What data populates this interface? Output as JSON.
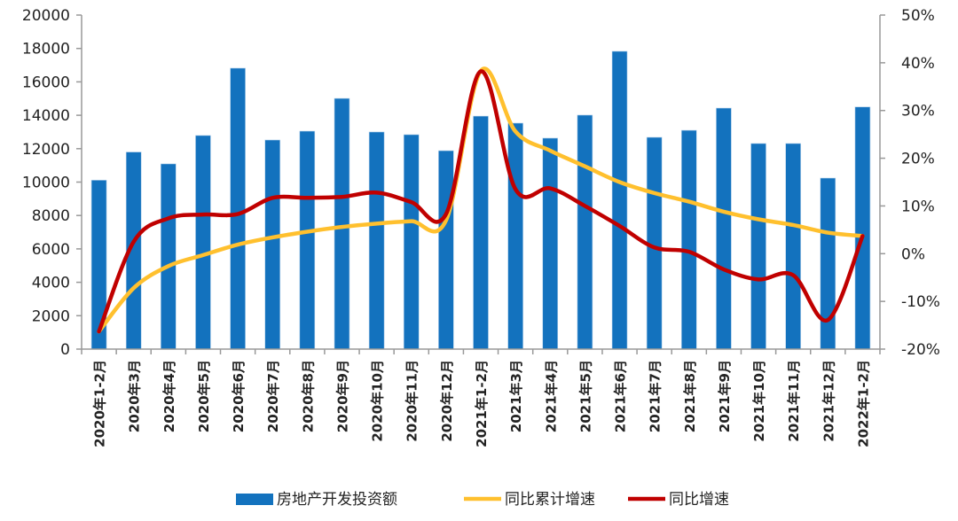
{
  "chart_data": {
    "type": "bar+line",
    "categories": [
      "2020年1-2月",
      "2020年3月",
      "2020年4月",
      "2020年5月",
      "2020年6月",
      "2020年7月",
      "2020年8月",
      "2020年9月",
      "2020年10月",
      "2020年11月",
      "2020年12月",
      "2021年1-2月",
      "2021年3月",
      "2021年4月",
      "2021年5月",
      "2021年6月",
      "2021年7月",
      "2021年8月",
      "2021年9月",
      "2021年10月",
      "2021年11月",
      "2021年12月",
      "2022年1-2月"
    ],
    "series": [
      {
        "name": "房地产开发投资额",
        "type": "bar",
        "axis": "left",
        "color": "#1372BE",
        "values": [
          10115,
          11800,
          11090,
          12790,
          16820,
          12520,
          13050,
          15010,
          13000,
          12840,
          11880,
          13950,
          13530,
          12630,
          14010,
          17830,
          12680,
          13100,
          14430,
          12310,
          12310,
          10240,
          14500
        ]
      },
      {
        "name": "同比累计增速",
        "type": "line",
        "axis": "right",
        "color": "#FFC02E",
        "values": [
          -16.3,
          -7.2,
          -2.6,
          -0.3,
          1.9,
          3.4,
          4.6,
          5.6,
          6.3,
          6.8,
          7.0,
          38.3,
          25.6,
          21.6,
          18.3,
          15.0,
          12.7,
          10.9,
          8.8,
          7.2,
          6.0,
          4.4,
          3.7
        ]
      },
      {
        "name": "同比增速",
        "type": "line",
        "axis": "right",
        "color": "#C00000",
        "values": [
          -16.3,
          2.5,
          7.4,
          8.2,
          8.3,
          11.7,
          11.7,
          11.9,
          12.8,
          10.8,
          8.3,
          38.2,
          13.5,
          13.7,
          10.0,
          5.8,
          1.3,
          0.4,
          -3.3,
          -5.4,
          -4.5,
          -13.9,
          3.7
        ]
      }
    ],
    "left_axis": {
      "ylim": [
        0,
        20000
      ],
      "ticks": [
        "0",
        "2000",
        "4000",
        "6000",
        "8000",
        "10000",
        "12000",
        "14000",
        "16000",
        "18000",
        "20000"
      ]
    },
    "right_axis": {
      "ylim": [
        -20,
        50
      ],
      "ticks": [
        "-20%",
        "-10%",
        "0%",
        "10%",
        "20%",
        "30%",
        "40%",
        "50%"
      ]
    },
    "grid": false,
    "legend": "bottom"
  }
}
